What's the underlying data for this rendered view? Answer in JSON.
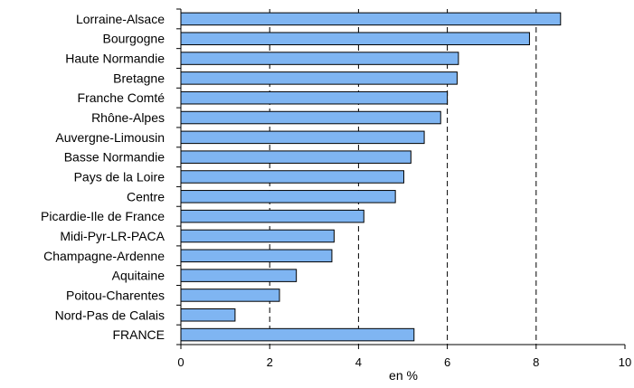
{
  "chart_data": {
    "type": "bar",
    "orientation": "horizontal",
    "categories": [
      "Lorraine-Alsace",
      "Bourgogne",
      "Haute Normandie",
      "Bretagne",
      "Franche Comté",
      "Rhône-Alpes",
      "Auvergne-Limousin",
      "Basse Normandie",
      "Pays de la Loire",
      "Centre",
      "Picardie-Ile de France",
      "Midi-Pyr-LR-PACA",
      "Champagne-Ardenne",
      "Aquitaine",
      "Poitou-Charentes",
      "Nord-Pas de Calais",
      "FRANCE"
    ],
    "values": [
      8.55,
      7.85,
      6.25,
      6.22,
      6.0,
      5.85,
      5.48,
      5.18,
      5.02,
      4.83,
      4.12,
      3.45,
      3.4,
      2.6,
      2.22,
      1.22,
      5.25
    ],
    "xlabel": "en %",
    "ylabel": "",
    "xlim": [
      0,
      10
    ],
    "xticks": [
      0,
      2,
      4,
      6,
      8,
      10
    ],
    "xtick_labels": [
      "0",
      "2",
      "4",
      "6",
      "8",
      "10"
    ],
    "grid": "vertical dashed at 2, 4, 6, 8",
    "bar_color": "#7fb5f2",
    "bar_edge_color": "#000000",
    "legend": "none"
  }
}
